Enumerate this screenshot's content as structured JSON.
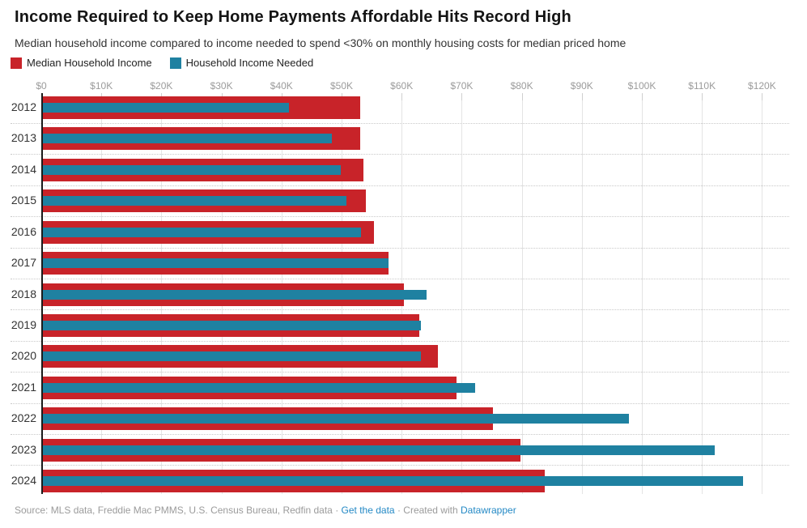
{
  "header": {
    "title": "Income Required to Keep Home Payments Affordable Hits Record High",
    "subtitle": "Median household income compared to income needed to spend <30% on monthly housing costs for median priced home"
  },
  "legend": {
    "items": [
      {
        "label": "Median Household Income",
        "color": "#c82329"
      },
      {
        "label": "Household Income Needed",
        "color": "#1f81a1"
      }
    ]
  },
  "chart_data": {
    "type": "bar",
    "orientation": "horizontal",
    "title": "Income Required to Keep Home Payments Affordable Hits Record High",
    "xlabel": "",
    "ylabel": "",
    "categories": [
      "2012",
      "2013",
      "2014",
      "2015",
      "2016",
      "2017",
      "2018",
      "2019",
      "2020",
      "2021",
      "2022",
      "2023",
      "2024"
    ],
    "series": [
      {
        "name": "Median Household Income",
        "color": "#c82329",
        "values": [
          53000,
          53000,
          53500,
          53900,
          55300,
          57700,
          60200,
          62800,
          65900,
          69000,
          75100,
          79600,
          83700
        ]
      },
      {
        "name": "Household Income Needed",
        "color": "#1f81a1",
        "values": [
          41100,
          48200,
          49700,
          50700,
          53100,
          57700,
          64000,
          63100,
          63100,
          72100,
          97700,
          112000,
          116700
        ]
      }
    ],
    "x_tick_labels": [
      "$0",
      "$10K",
      "$20K",
      "$30K",
      "$40K",
      "$50K",
      "$60K",
      "$70K",
      "$80K",
      "$90K",
      "$100K",
      "$110K",
      "$120K"
    ],
    "x_tick_values": [
      0,
      10000,
      20000,
      30000,
      40000,
      50000,
      60000,
      70000,
      80000,
      90000,
      100000,
      110000,
      120000
    ],
    "xlim": [
      0,
      125000
    ],
    "grid": "vertical gridlines at each $10K; dotted horizontal separators between year rows",
    "legend_position": "top-left",
    "bar_style": "needed-income bar overlaid centered on thicker median-income bar"
  },
  "footer": {
    "source": "Source: MLS data, Freddie Mac PMMS, U.S. Census Bureau, Redfin data",
    "separator": "·",
    "get_data_label": "Get the data",
    "created_with": "Created with",
    "datawrapper_label": "Datawrapper"
  }
}
